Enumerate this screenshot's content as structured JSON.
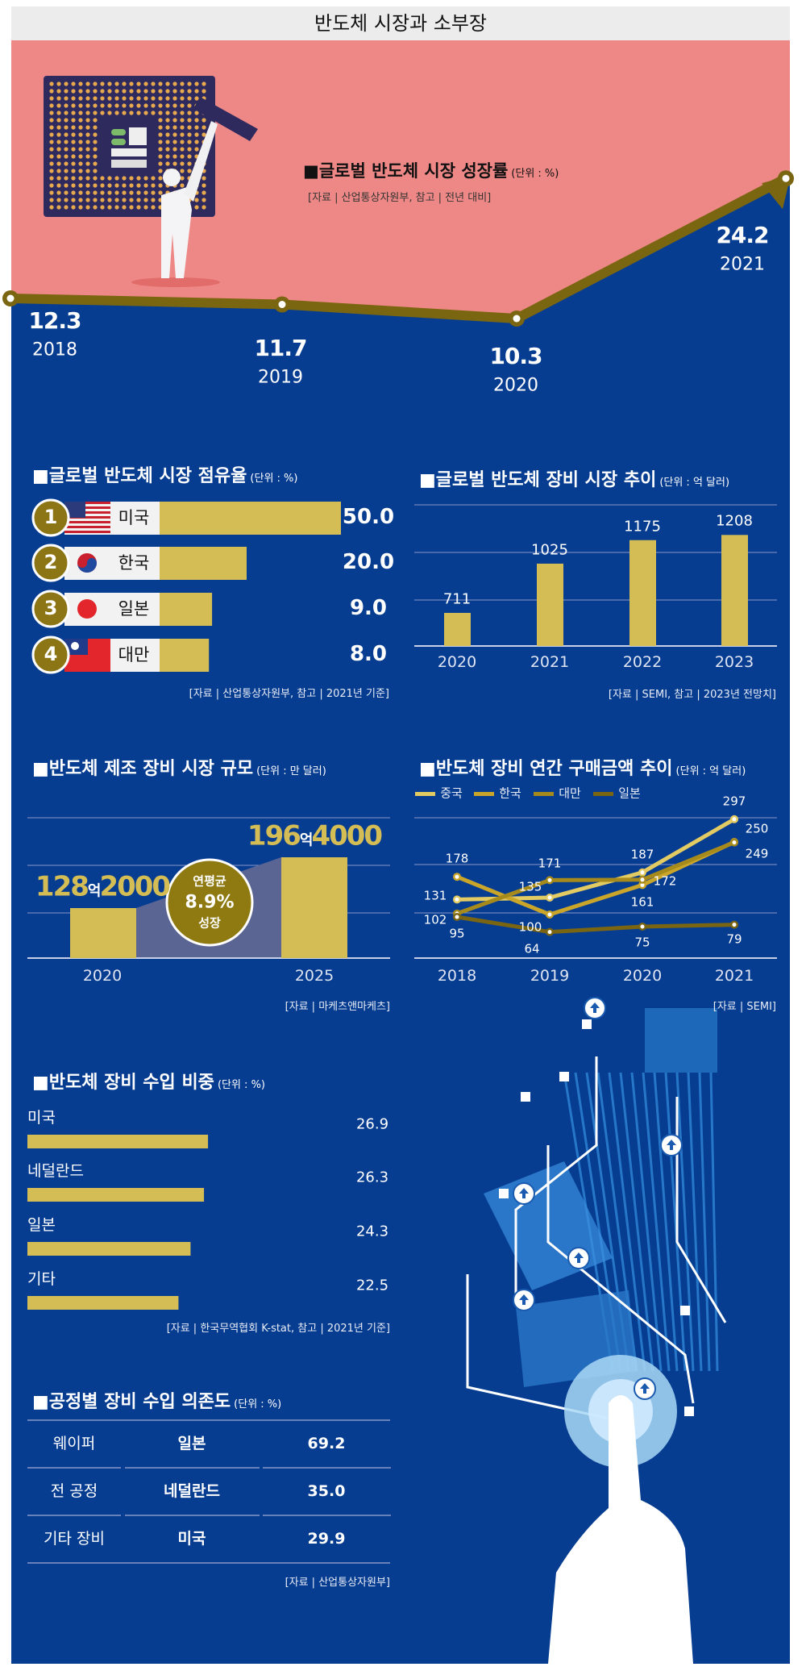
{
  "header": {
    "title": "반도체 시장과 소부장"
  },
  "colors": {
    "panel": "#063d91",
    "pink": "#ee8886",
    "gold": "#d4bd55",
    "line_brown": "#7a6510",
    "header_bg": "#ececec"
  },
  "chart_data": [
    {
      "type": "line",
      "title": "■글로벌 반도체 시장 성장률",
      "unit": "(단위 : %)",
      "source": "[자료 | 산업통상자원부, 참고 | 전년 대비]",
      "categories": [
        "2018",
        "2019",
        "2020",
        "2021"
      ],
      "values": [
        12.3,
        11.7,
        10.3,
        24.2
      ],
      "value_labels": [
        "12.3",
        "11.7",
        "10.3",
        "24.2"
      ]
    },
    {
      "type": "bar",
      "title": "■글로벌 반도체 시장 점유율",
      "unit": "(단위 : %)",
      "source": "[자료 | 산업통상자원부, 참고 | 2021년 기준]",
      "ranks": [
        "1",
        "2",
        "3",
        "4"
      ],
      "categories": [
        "미국",
        "한국",
        "일본",
        "대만"
      ],
      "flags": [
        "us-flag-icon",
        "korea-flag-icon",
        "japan-flag-icon",
        "taiwan-flag-icon"
      ],
      "values": [
        50.0,
        20.0,
        9.0,
        8.0
      ],
      "value_labels": [
        "50.0",
        "20.0",
        "9.0",
        "8.0"
      ]
    },
    {
      "type": "bar",
      "title": "■글로벌 반도체 장비 시장 추이",
      "unit": "(단위 : 억 달러)",
      "source": "[자료 | SEMI, 참고 | 2023년 전망치]",
      "categories": [
        "2020",
        "2021",
        "2022",
        "2023"
      ],
      "values": [
        711,
        1025,
        1175,
        1208
      ],
      "ylim": [
        500,
        1400
      ],
      "grid": true
    },
    {
      "type": "bar",
      "title": "■반도체 제조 장비 시장 규모",
      "unit": "(단위 : 만 달러)",
      "source": "[자료 | 마케츠앤마케츠]",
      "categories": [
        "2020",
        "2025"
      ],
      "values": [
        1282000,
        1964000
      ],
      "value_labels": [
        [
          "128",
          "억",
          "2000"
        ],
        [
          "196",
          "억",
          "4000"
        ]
      ],
      "annotation": [
        "연평균",
        "8.9%",
        "성장"
      ],
      "grid": true
    },
    {
      "type": "line",
      "title": "■반도체 장비 연간 구매금액 추이",
      "unit": "(단위 : 억 달러)",
      "source": "[자료 | SEMI]",
      "categories": [
        "2018",
        "2019",
        "2020",
        "2021"
      ],
      "ylim": [
        10,
        300
      ],
      "grid": true,
      "legend": "top-left",
      "series": [
        {
          "name": "중국",
          "color": "#e3cb63",
          "values": [
            131,
            135,
            187,
            297
          ]
        },
        {
          "name": "한국",
          "color": "#c9a52a",
          "values": [
            178,
            100,
            161,
            250
          ]
        },
        {
          "name": "대만",
          "color": "#a68a1c",
          "values": [
            102,
            171,
            172,
            249
          ]
        },
        {
          "name": "일본",
          "color": "#7a6512",
          "values": [
            95,
            64,
            75,
            79
          ]
        }
      ]
    },
    {
      "type": "bar",
      "title": "■반도체 장비 수입 비중",
      "unit": "(단위 : %)",
      "source": "[자료 | 한국무역협회 K-stat, 참고 | 2021년 기준]",
      "categories": [
        "미국",
        "네덜란드",
        "일본",
        "기타"
      ],
      "values": [
        26.9,
        26.3,
        24.3,
        22.5
      ],
      "value_labels": [
        "26.9",
        "26.3",
        "24.3",
        "22.5"
      ]
    },
    {
      "type": "table",
      "title": "■공정별 장비 수입 의존도",
      "unit": "(단위 : %)",
      "source": "[자료 | 산업통상자원부]",
      "rows": [
        [
          "웨이퍼",
          "일본",
          "69.2"
        ],
        [
          "전 공정",
          "네덜란드",
          "35.0"
        ],
        [
          "기타 장비",
          "미국",
          "29.9"
        ]
      ]
    }
  ]
}
